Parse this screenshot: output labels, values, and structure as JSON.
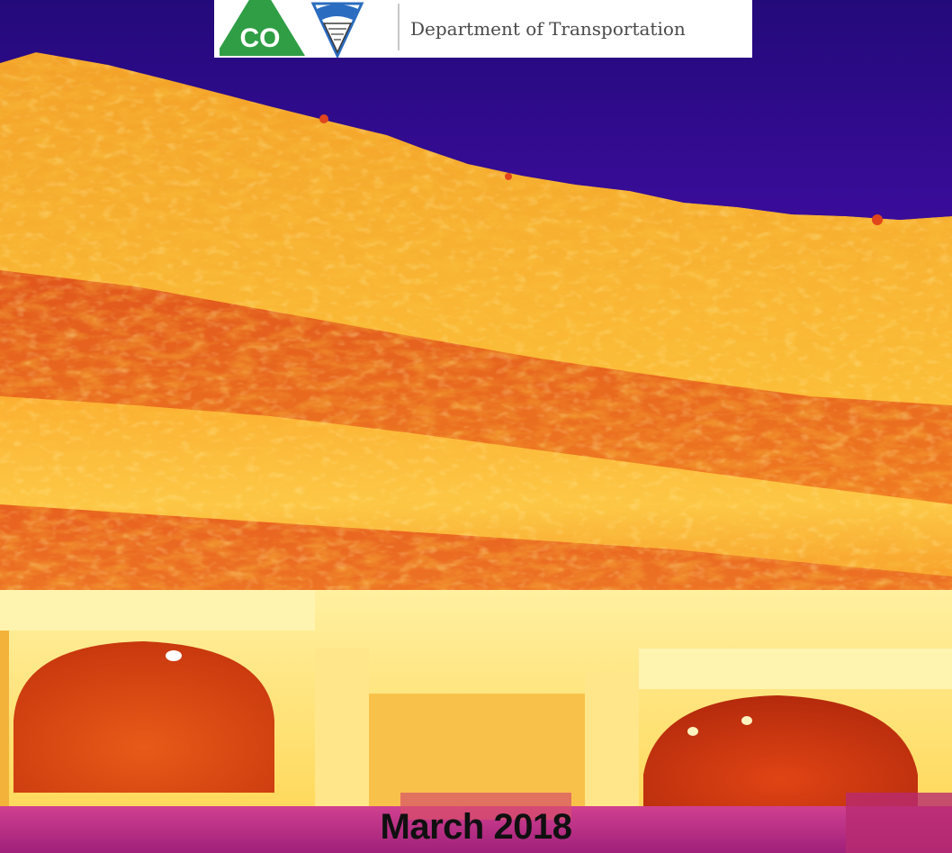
{
  "header": {
    "agency_name_partial": "",
    "department": "Department of Transportation",
    "logo_text": "CO"
  },
  "caption": {
    "date": "March 2018"
  },
  "colors": {
    "sky": "#2a0a8c",
    "rock_hot": "#ffcc33",
    "rock_mid": "#f28a1e",
    "rock_cool": "#d4421a",
    "portal": "#ffe27a",
    "ground": "#c02a8c",
    "logo_green": "#2f9e45",
    "logo_blue": "#2a6cc0"
  }
}
